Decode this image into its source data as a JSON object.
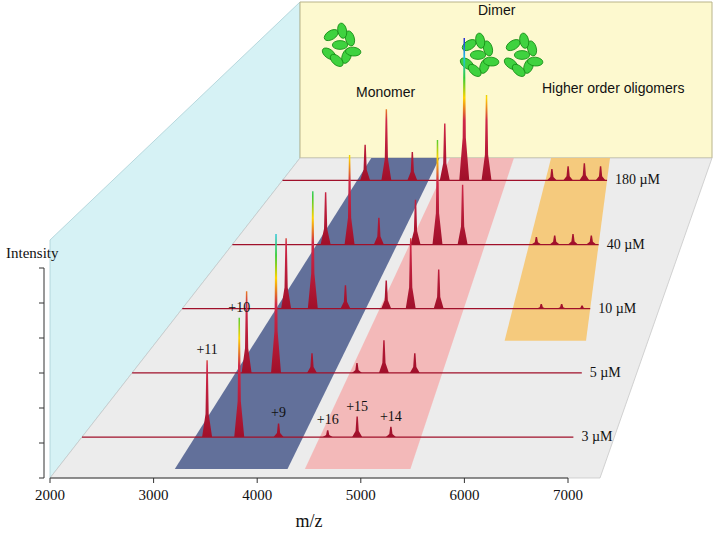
{
  "chart_data": {
    "type": "waterfall",
    "x_label": "m/z",
    "y_label": "Intensity",
    "xlim": [
      2000,
      7000
    ],
    "xticks": [
      2000,
      3000,
      4000,
      5000,
      6000,
      7000
    ],
    "ylim": [
      0,
      120
    ],
    "yticks": [
      0,
      20,
      40,
      60,
      80,
      100,
      120
    ],
    "tick_labels": "x",
    "series": [
      {
        "name": "3 µM",
        "color": "#a0102a",
        "x": [
          3273,
          3600,
          4000,
          4500,
          4800,
          5143
        ],
        "values": [
          45,
          70,
          8,
          4,
          12,
          6
        ]
      },
      {
        "name": "5 µM",
        "color": "#a0102a",
        "x": [
          3273,
          3600,
          4000,
          4500,
          4800,
          5143
        ],
        "values": [
          50,
          85,
          12,
          6,
          20,
          12
        ]
      },
      {
        "name": "10 µM",
        "color": "#a0102a",
        "x": [
          3273,
          3600,
          4000,
          4500,
          4800,
          5143,
          6400,
          6650,
          6900
        ],
        "values": [
          45,
          75,
          15,
          18,
          45,
          25,
          3,
          3,
          2
        ]
      },
      {
        "name": "40 µM",
        "color": "#a0102a",
        "x": [
          3273,
          3600,
          4000,
          4500,
          4800,
          5143,
          6150,
          6400,
          6650,
          6900
        ],
        "values": [
          35,
          60,
          18,
          30,
          70,
          40,
          5,
          6,
          7,
          6
        ]
      },
      {
        "name": "180 µM",
        "color": "#a0102a",
        "x": [
          3273,
          3600,
          4000,
          4500,
          4800,
          5143,
          6150,
          6400,
          6650,
          6900
        ],
        "values": [
          25,
          50,
          20,
          40,
          100,
          60,
          8,
          10,
          12,
          10
        ]
      }
    ],
    "regions": [
      {
        "label": "Monomer",
        "range": [
          3150,
          4250
        ],
        "color": "#4a5a8c",
        "start_series": "3 µM"
      },
      {
        "label": "Dimer",
        "range": [
          4420,
          5450
        ],
        "color": "#f5b0b0",
        "start_series": "3 µM"
      },
      {
        "label": "Higher order oligomers",
        "range": [
          6050,
          7000
        ],
        "color": "#f7c46a",
        "start_series": "10 µM"
      }
    ],
    "annotations": [
      {
        "text": "+11",
        "series": "3 µM",
        "x": 3273
      },
      {
        "text": "+10",
        "series": "3 µM",
        "x": 3600
      },
      {
        "text": "+9",
        "series": "3 µM",
        "x": 4000
      },
      {
        "text": "+16",
        "series": "3 µM",
        "x": 4500
      },
      {
        "text": "+15",
        "series": "3 µM",
        "x": 4800
      },
      {
        "text": "+14",
        "series": "3 µM",
        "x": 5143
      }
    ]
  }
}
